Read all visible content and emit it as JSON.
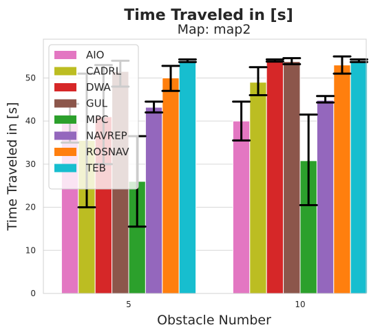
{
  "chart_data": {
    "type": "bar",
    "title": "Time Traveled in [s]",
    "subtitle": "Map: map2",
    "xlabel": "Obstacle Number",
    "ylabel": "Time Traveled in [s]",
    "categories": [
      "5",
      "10"
    ],
    "ylim": [
      0,
      59
    ],
    "yticks": [
      0,
      10,
      20,
      30,
      40,
      50
    ],
    "grid": true,
    "legend_position": "upper-left",
    "series": [
      {
        "name": "AIO",
        "color": "#e377c2",
        "values": [
          39.5,
          40.0
        ],
        "err_low": [
          35.0,
          35.5
        ],
        "err_high": [
          44.0,
          44.5
        ]
      },
      {
        "name": "CADRL",
        "color": "#bcbd22",
        "values": [
          35.5,
          49.0
        ],
        "err_low": [
          20.0,
          46.0
        ],
        "err_high": [
          51.0,
          52.5
        ]
      },
      {
        "name": "DWA",
        "color": "#d62728",
        "values": [
          41.0,
          54.0
        ],
        "err_low": [
          30.0,
          53.8
        ],
        "err_high": [
          53.0,
          54.3
        ]
      },
      {
        "name": "GUL",
        "color": "#8c564b",
        "values": [
          51.5,
          53.8
        ],
        "err_low": [
          48.0,
          53.2
        ],
        "err_high": [
          54.0,
          54.6
        ]
      },
      {
        "name": "MPC",
        "color": "#2ca02c",
        "values": [
          26.0,
          30.8
        ],
        "err_low": [
          15.5,
          20.5
        ],
        "err_high": [
          36.5,
          41.5
        ]
      },
      {
        "name": "NAVREP",
        "color": "#9467bd",
        "values": [
          43.2,
          44.8
        ],
        "err_low": [
          42.0,
          44.3
        ],
        "err_high": [
          44.5,
          45.8
        ]
      },
      {
        "name": "ROSNAV",
        "color": "#ff7f0e",
        "values": [
          50.0,
          53.0
        ],
        "err_low": [
          47.0,
          51.0
        ],
        "err_high": [
          52.8,
          55.0
        ]
      },
      {
        "name": "TEB",
        "color": "#17becf",
        "values": [
          54.0,
          54.0
        ],
        "err_low": [
          53.7,
          53.7
        ],
        "err_high": [
          54.3,
          54.3
        ]
      }
    ]
  }
}
